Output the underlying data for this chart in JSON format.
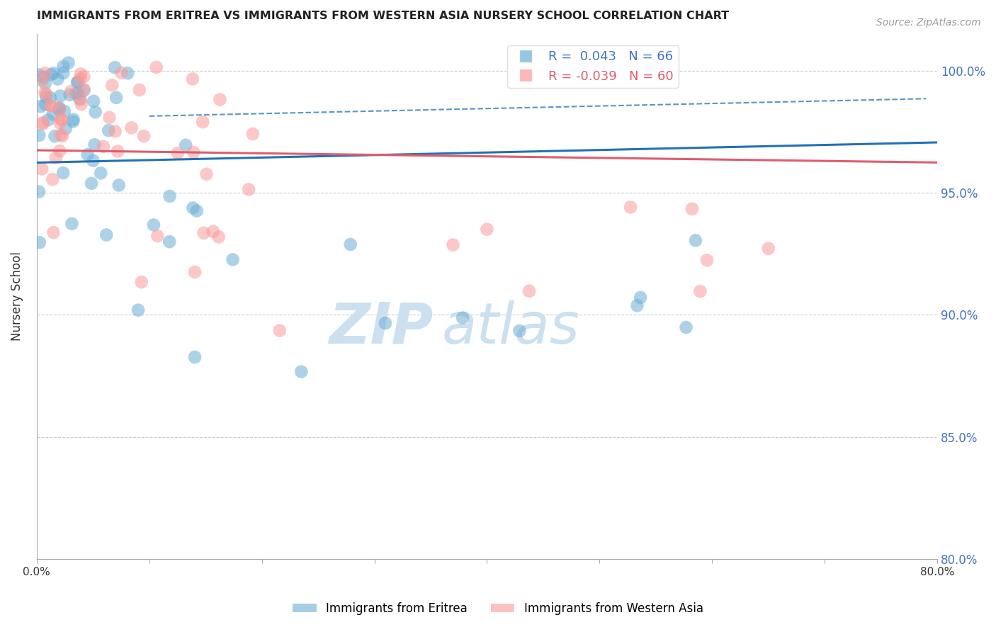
{
  "title": "IMMIGRANTS FROM ERITREA VS IMMIGRANTS FROM WESTERN ASIA NURSERY SCHOOL CORRELATION CHART",
  "source": "Source: ZipAtlas.com",
  "ylabel": "Nursery School",
  "y_ticks": [
    80.0,
    85.0,
    90.0,
    95.0,
    100.0
  ],
  "legend_r1": "R =  0.043   N = 66",
  "legend_r2": "R = -0.039   N = 60",
  "eritrea_color": "#6baed6",
  "western_asia_color": "#fb9a99",
  "eritrea_line_color": "#2171b5",
  "western_asia_line_color": "#e05c6e",
  "background_color": "#ffffff",
  "n_eritrea": 66,
  "n_western": 60,
  "xlim": [
    0,
    0.08
  ],
  "ylim": [
    80.0,
    101.5
  ]
}
